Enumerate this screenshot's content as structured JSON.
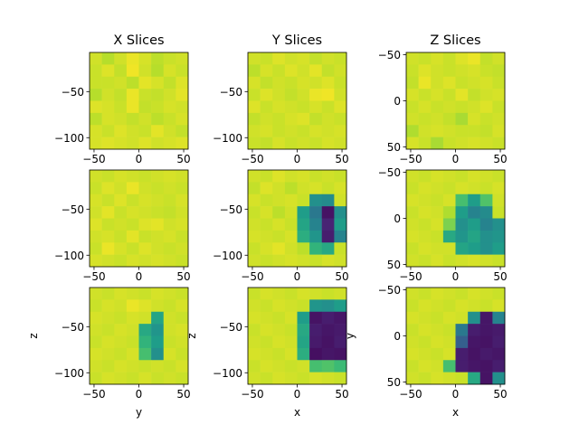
{
  "figure": {
    "column_titles": [
      "X Slices",
      "Y Slices",
      "Z Slices"
    ]
  },
  "colormap": {
    "name": "viridis",
    "value_range": [
      0,
      1
    ],
    "stops": [
      "#440154",
      "#482878",
      "#3e4989",
      "#31688e",
      "#26828e",
      "#1f9e89",
      "#35b779",
      "#6ece58",
      "#b5de2b",
      "#fde725"
    ]
  },
  "chart_data": [
    {
      "type": "heatmap",
      "title": "X Slices",
      "xlabel": "",
      "ylabel": "",
      "xlim": [
        -55,
        55
      ],
      "ylim": [
        -112.5,
        -7.5
      ],
      "y_inverted": false,
      "xticks": [
        -50,
        0,
        50
      ],
      "yticks": [
        -100,
        -50
      ],
      "values": [
        [
          0.93,
          0.89,
          0.93,
          0.97,
          0.94,
          0.9,
          0.92,
          0.93
        ],
        [
          0.92,
          0.95,
          0.91,
          0.98,
          0.93,
          0.89,
          0.94,
          0.92
        ],
        [
          0.92,
          0.92,
          0.93,
          0.9,
          0.96,
          0.94,
          0.91,
          0.95
        ],
        [
          0.89,
          0.93,
          0.91,
          0.97,
          0.92,
          0.91,
          0.93,
          0.96
        ],
        [
          0.95,
          0.94,
          0.92,
          0.97,
          0.91,
          0.92,
          0.94,
          0.93
        ],
        [
          0.9,
          0.94,
          0.93,
          0.91,
          0.93,
          0.9,
          0.92,
          0.94
        ],
        [
          0.94,
          0.92,
          0.95,
          0.93,
          0.92,
          0.96,
          0.93,
          0.91
        ],
        [
          0.94,
          0.95,
          0.94,
          0.93,
          0.95,
          0.93,
          0.94,
          0.95
        ]
      ]
    },
    {
      "type": "heatmap",
      "title": "Y Slices",
      "xlabel": "",
      "ylabel": "",
      "xlim": [
        -55,
        55
      ],
      "ylim": [
        -112.5,
        -7.5
      ],
      "y_inverted": false,
      "xticks": [
        -50,
        0,
        50
      ],
      "yticks": [
        -100,
        -50
      ],
      "values": [
        [
          0.93,
          0.92,
          0.95,
          0.93,
          0.94,
          0.91,
          0.93,
          0.92
        ],
        [
          0.9,
          0.94,
          0.92,
          0.95,
          0.93,
          0.96,
          0.91,
          0.93
        ],
        [
          0.94,
          0.91,
          0.93,
          0.92,
          0.94,
          0.93,
          0.95,
          0.92
        ],
        [
          0.92,
          0.95,
          0.93,
          0.91,
          0.93,
          0.97,
          0.98,
          0.93
        ],
        [
          0.95,
          0.92,
          0.94,
          0.93,
          0.92,
          0.94,
          0.92,
          0.95
        ],
        [
          0.91,
          0.93,
          0.92,
          0.94,
          0.95,
          0.91,
          0.93,
          0.92
        ],
        [
          0.93,
          0.94,
          0.92,
          0.93,
          0.92,
          0.94,
          0.93,
          0.94
        ],
        [
          0.92,
          0.91,
          0.94,
          0.92,
          0.93,
          0.92,
          0.94,
          0.93
        ]
      ]
    },
    {
      "type": "heatmap",
      "title": "Z Slices",
      "xlabel": "",
      "ylabel": "",
      "xlim": [
        -55,
        55
      ],
      "ylim": [
        52.5,
        -52.5
      ],
      "y_inverted": true,
      "xticks": [
        -50,
        0,
        50
      ],
      "yticks": [
        -50,
        0,
        50
      ],
      "values": [
        [
          0.93,
          0.92,
          0.94,
          0.92,
          0.95,
          0.97,
          0.91,
          0.93
        ],
        [
          0.92,
          0.95,
          0.93,
          0.92,
          0.93,
          0.94,
          0.92,
          0.91
        ],
        [
          0.91,
          0.97,
          0.93,
          0.95,
          0.92,
          0.93,
          0.94,
          0.92
        ],
        [
          0.94,
          0.92,
          0.94,
          0.92,
          0.96,
          0.91,
          0.93,
          0.94
        ],
        [
          0.92,
          0.94,
          0.92,
          0.93,
          0.92,
          0.93,
          0.95,
          0.92
        ],
        [
          0.93,
          0.92,
          0.93,
          0.91,
          0.87,
          0.94,
          0.92,
          0.93
        ],
        [
          0.88,
          0.93,
          0.94,
          0.93,
          0.92,
          0.92,
          0.91,
          0.94
        ],
        [
          0.94,
          0.92,
          0.87,
          0.92,
          0.93,
          0.94,
          0.93,
          0.92
        ]
      ]
    },
    {
      "type": "heatmap",
      "title": "",
      "xlabel": "",
      "ylabel": "",
      "xlim": [
        -55,
        55
      ],
      "ylim": [
        -112.5,
        -7.5
      ],
      "y_inverted": false,
      "xticks": [
        -50,
        0,
        50
      ],
      "yticks": [
        -100,
        -50
      ],
      "values": [
        [
          0.93,
          0.92,
          0.94,
          0.93,
          0.92,
          0.93,
          0.94,
          0.93
        ],
        [
          0.92,
          0.95,
          0.93,
          0.97,
          0.93,
          0.92,
          0.93,
          0.92
        ],
        [
          0.94,
          0.92,
          0.95,
          0.92,
          0.94,
          0.93,
          0.92,
          0.94
        ],
        [
          0.93,
          0.96,
          0.92,
          0.94,
          0.93,
          0.92,
          0.91,
          0.93
        ],
        [
          0.95,
          0.92,
          0.93,
          0.92,
          0.95,
          0.96,
          0.93,
          0.94
        ],
        [
          0.93,
          0.94,
          0.92,
          0.96,
          0.92,
          0.93,
          0.94,
          0.92
        ],
        [
          0.92,
          0.97,
          0.94,
          0.92,
          0.95,
          0.93,
          0.92,
          0.93
        ],
        [
          0.94,
          0.93,
          0.92,
          0.94,
          0.93,
          0.94,
          0.93,
          0.92
        ]
      ]
    },
    {
      "type": "heatmap",
      "title": "",
      "xlabel": "",
      "ylabel": "",
      "xlim": [
        -55,
        55
      ],
      "ylim": [
        -112.5,
        -7.5
      ],
      "y_inverted": false,
      "xticks": [
        -50,
        0,
        50
      ],
      "yticks": [
        -100,
        -50
      ],
      "values": [
        [
          0.93,
          0.92,
          0.95,
          0.93,
          0.94,
          0.92,
          0.93,
          0.92
        ],
        [
          0.91,
          0.95,
          0.93,
          0.9,
          0.93,
          0.94,
          0.92,
          0.94
        ],
        [
          0.94,
          0.92,
          0.93,
          0.94,
          0.92,
          0.5,
          0.48,
          0.93
        ],
        [
          0.92,
          0.94,
          0.9,
          0.93,
          0.55,
          0.4,
          0.05,
          0.5
        ],
        [
          0.93,
          0.92,
          0.94,
          0.92,
          0.58,
          0.45,
          0.1,
          0.55
        ],
        [
          0.94,
          0.93,
          0.92,
          0.94,
          0.62,
          0.52,
          0.08,
          0.45
        ],
        [
          0.92,
          0.94,
          0.96,
          0.93,
          0.9,
          0.65,
          0.6,
          0.92
        ],
        [
          0.93,
          0.92,
          0.93,
          0.94,
          0.93,
          0.92,
          0.94,
          0.93
        ]
      ]
    },
    {
      "type": "heatmap",
      "title": "",
      "xlabel": "",
      "ylabel": "",
      "xlim": [
        -55,
        55
      ],
      "ylim": [
        52.5,
        -52.5
      ],
      "y_inverted": true,
      "xticks": [
        -50,
        0,
        50
      ],
      "yticks": [
        -50,
        0,
        50
      ],
      "values": [
        [
          0.93,
          0.92,
          0.94,
          0.93,
          0.92,
          0.94,
          0.93,
          0.92
        ],
        [
          0.92,
          0.94,
          0.93,
          0.92,
          0.94,
          0.93,
          0.92,
          0.94
        ],
        [
          0.94,
          0.93,
          0.92,
          0.94,
          0.7,
          0.55,
          0.72,
          0.93
        ],
        [
          0.92,
          0.94,
          0.93,
          0.88,
          0.55,
          0.45,
          0.48,
          0.92
        ],
        [
          0.93,
          0.92,
          0.94,
          0.8,
          0.5,
          0.55,
          0.45,
          0.5
        ],
        [
          0.94,
          0.93,
          0.92,
          0.6,
          0.52,
          0.58,
          0.5,
          0.52
        ],
        [
          0.92,
          0.94,
          0.93,
          0.93,
          0.58,
          0.55,
          0.5,
          0.55
        ],
        [
          0.93,
          0.92,
          0.94,
          0.92,
          0.93,
          0.94,
          0.93,
          0.92
        ]
      ]
    },
    {
      "type": "heatmap",
      "title": "",
      "xlabel": "y",
      "ylabel": "z",
      "xlim": [
        -55,
        55
      ],
      "ylim": [
        -112.5,
        -7.5
      ],
      "y_inverted": false,
      "xticks": [
        -50,
        0,
        50
      ],
      "yticks": [
        -100,
        -50
      ],
      "values": [
        [
          0.93,
          0.92,
          0.94,
          0.93,
          0.92,
          0.94,
          0.93,
          0.92
        ],
        [
          0.92,
          0.94,
          0.93,
          0.97,
          0.95,
          0.93,
          0.92,
          0.94
        ],
        [
          0.94,
          0.93,
          0.92,
          0.94,
          0.93,
          0.58,
          0.93,
          0.92
        ],
        [
          0.93,
          0.92,
          0.94,
          0.93,
          0.6,
          0.52,
          0.93,
          0.94
        ],
        [
          0.92,
          0.94,
          0.93,
          0.92,
          0.65,
          0.55,
          0.92,
          0.93
        ],
        [
          0.94,
          0.93,
          0.92,
          0.94,
          0.7,
          0.5,
          0.94,
          0.92
        ],
        [
          0.93,
          0.92,
          0.94,
          0.93,
          0.92,
          0.93,
          0.92,
          0.94
        ],
        [
          0.92,
          0.94,
          0.93,
          0.92,
          0.94,
          0.92,
          0.93,
          0.92
        ]
      ]
    },
    {
      "type": "heatmap",
      "title": "",
      "xlabel": "x",
      "ylabel": "z",
      "xlim": [
        -55,
        55
      ],
      "ylim": [
        -112.5,
        -7.5
      ],
      "y_inverted": false,
      "xticks": [
        -50,
        0,
        50
      ],
      "yticks": [
        -100,
        -50
      ],
      "values": [
        [
          0.92,
          0.94,
          0.93,
          0.92,
          0.94,
          0.93,
          0.92,
          0.93
        ],
        [
          0.93,
          0.92,
          0.94,
          0.93,
          0.92,
          0.52,
          0.5,
          0.55
        ],
        [
          0.94,
          0.93,
          0.92,
          0.94,
          0.55,
          0.05,
          0.08,
          0.06
        ],
        [
          0.92,
          0.94,
          0.93,
          0.92,
          0.6,
          0.08,
          0.06,
          0.07
        ],
        [
          0.93,
          0.92,
          0.94,
          0.93,
          0.58,
          0.07,
          0.05,
          0.08
        ],
        [
          0.94,
          0.93,
          0.92,
          0.94,
          0.62,
          0.04,
          0.06,
          0.05
        ],
        [
          0.92,
          0.94,
          0.93,
          0.92,
          0.93,
          0.7,
          0.72,
          0.68
        ],
        [
          0.93,
          0.92,
          0.94,
          0.93,
          0.92,
          0.94,
          0.93,
          0.92
        ]
      ]
    },
    {
      "type": "heatmap",
      "title": "",
      "xlabel": "x",
      "ylabel": "y",
      "xlim": [
        -55,
        55
      ],
      "ylim": [
        52.5,
        -52.5
      ],
      "y_inverted": true,
      "xticks": [
        -50,
        0,
        50
      ],
      "yticks": [
        -50,
        0,
        50
      ],
      "values": [
        [
          0.93,
          0.92,
          0.94,
          0.93,
          0.92,
          0.94,
          0.93,
          0.92
        ],
        [
          0.92,
          0.94,
          0.93,
          0.92,
          0.94,
          0.93,
          0.92,
          0.94
        ],
        [
          0.94,
          0.93,
          0.92,
          0.94,
          0.93,
          0.5,
          0.06,
          0.45
        ],
        [
          0.92,
          0.94,
          0.93,
          0.92,
          0.4,
          0.08,
          0.06,
          0.07
        ],
        [
          0.93,
          0.92,
          0.94,
          0.93,
          0.3,
          0.06,
          0.05,
          0.08
        ],
        [
          0.94,
          0.93,
          0.92,
          0.94,
          0.08,
          0.05,
          0.07,
          0.06
        ],
        [
          0.92,
          0.94,
          0.93,
          0.7,
          0.08,
          0.06,
          0.05,
          0.08
        ],
        [
          0.93,
          0.92,
          0.94,
          0.93,
          0.92,
          0.6,
          0.05,
          0.5
        ]
      ]
    }
  ]
}
